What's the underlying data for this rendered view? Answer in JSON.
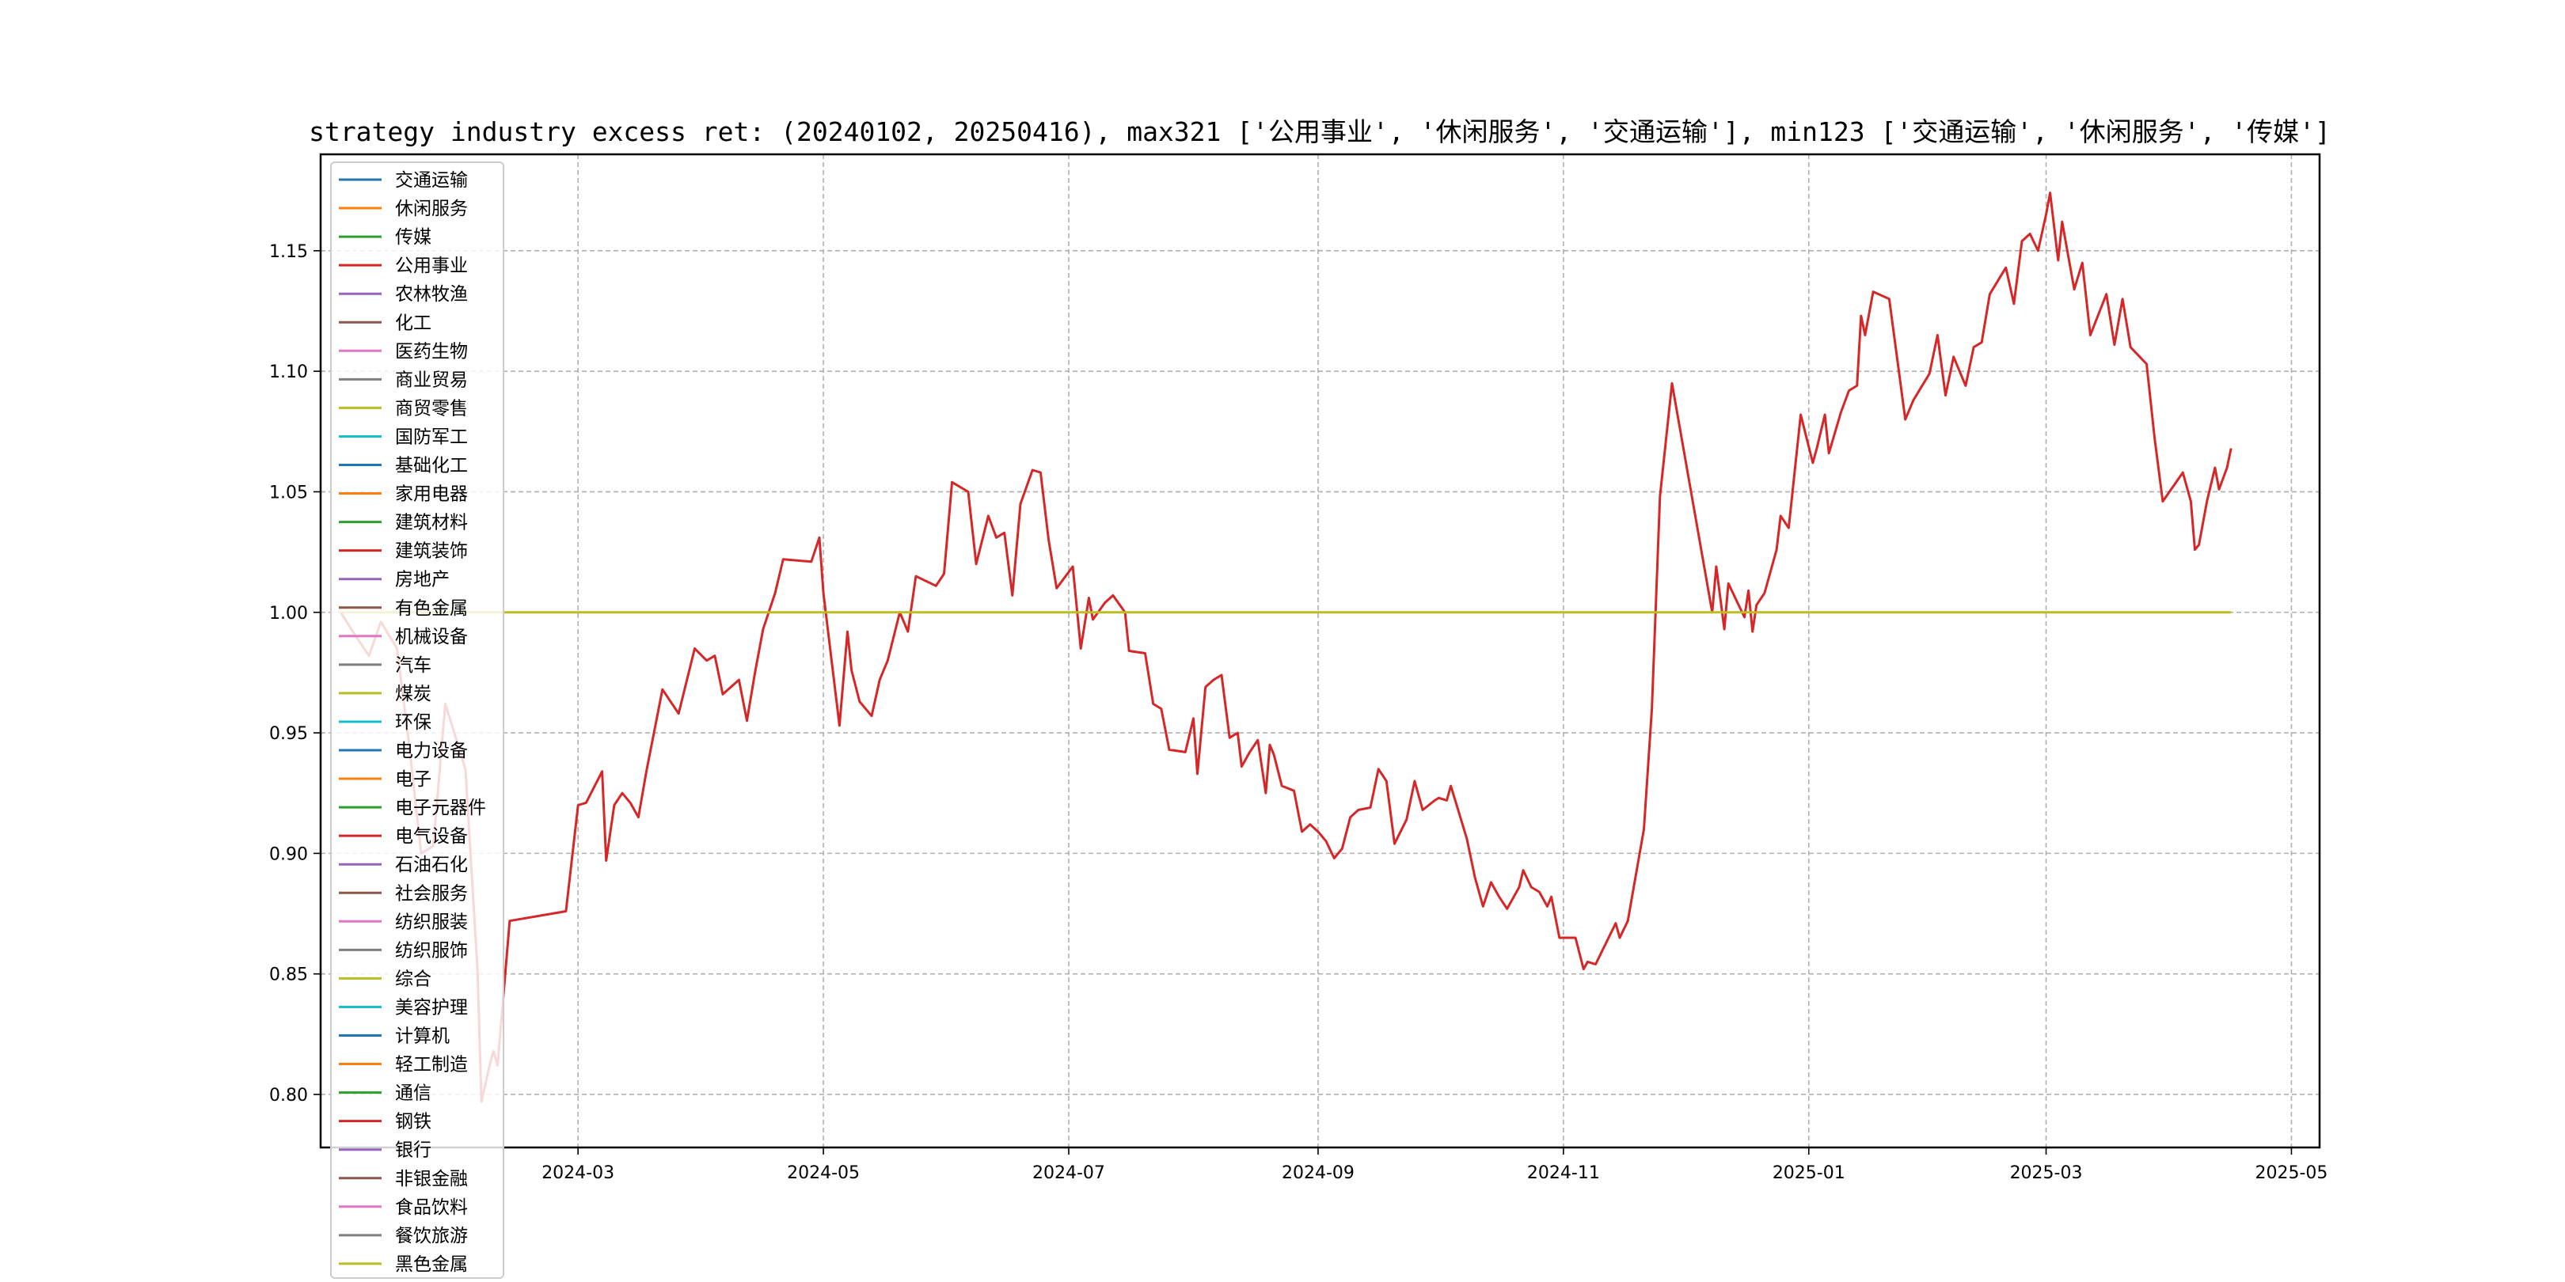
{
  "chart_data": {
    "type": "line",
    "title": "strategy industry excess ret: (20240102, 20250416), max321 ['公用事业', '休闲服务', '交通运输'], min123 ['交通运输', '休闲服务', '传媒']",
    "xlabel": "",
    "ylabel": "",
    "xlim": [
      "2023-12-28",
      "2025-05-08"
    ],
    "ylim": [
      0.778,
      1.19
    ],
    "x_ticks": [
      "2024-03",
      "2024-05",
      "2024-07",
      "2024-09",
      "2024-11",
      "2025-01",
      "2025-03",
      "2025-05"
    ],
    "y_ticks": [
      "0.80",
      "0.85",
      "0.90",
      "0.95",
      "1.00",
      "1.05",
      "1.10",
      "1.15"
    ],
    "grid": true,
    "legend_position": "upper-left",
    "series": [
      {
        "name": "公用事业",
        "color": "#d62728",
        "points": [
          [
            "2024-01-02",
            1.0
          ],
          [
            "2024-01-05",
            0.992
          ],
          [
            "2024-01-09",
            0.982
          ],
          [
            "2024-01-12",
            0.996
          ],
          [
            "2024-01-16",
            0.985
          ],
          [
            "2024-01-19",
            0.945
          ],
          [
            "2024-01-22",
            0.9
          ],
          [
            "2024-01-25",
            0.903
          ],
          [
            "2024-01-28",
            0.962
          ],
          [
            "2024-02-02",
            0.935
          ],
          [
            "2024-02-05",
            0.852
          ],
          [
            "2024-02-06",
            0.797
          ],
          [
            "2024-02-08",
            0.812
          ],
          [
            "2024-02-09",
            0.818
          ],
          [
            "2024-02-10",
            0.812
          ],
          [
            "2024-02-13",
            0.872
          ],
          [
            "2024-02-27",
            0.876
          ],
          [
            "2024-03-01",
            0.92
          ],
          [
            "2024-03-03",
            0.921
          ],
          [
            "2024-03-07",
            0.934
          ],
          [
            "2024-03-08",
            0.897
          ],
          [
            "2024-03-10",
            0.92
          ],
          [
            "2024-03-12",
            0.925
          ],
          [
            "2024-03-14",
            0.921
          ],
          [
            "2024-03-16",
            0.915
          ],
          [
            "2024-03-18",
            0.934
          ],
          [
            "2024-03-22",
            0.968
          ],
          [
            "2024-03-26",
            0.958
          ],
          [
            "2024-03-30",
            0.985
          ],
          [
            "2024-04-02",
            0.98
          ],
          [
            "2024-04-04",
            0.982
          ],
          [
            "2024-04-06",
            0.966
          ],
          [
            "2024-04-10",
            0.972
          ],
          [
            "2024-04-12",
            0.955
          ],
          [
            "2024-04-14",
            0.975
          ],
          [
            "2024-04-16",
            0.993
          ],
          [
            "2024-04-19",
            1.008
          ],
          [
            "2024-04-21",
            1.022
          ],
          [
            "2024-04-28",
            1.021
          ],
          [
            "2024-04-30",
            1.031
          ],
          [
            "2024-05-01",
            1.008
          ],
          [
            "2024-05-05",
            0.953
          ],
          [
            "2024-05-07",
            0.992
          ],
          [
            "2024-05-08",
            0.976
          ],
          [
            "2024-05-10",
            0.963
          ],
          [
            "2024-05-13",
            0.957
          ],
          [
            "2024-05-15",
            0.972
          ],
          [
            "2024-05-17",
            0.98
          ],
          [
            "2024-05-20",
            1.0
          ],
          [
            "2024-05-22",
            0.992
          ],
          [
            "2024-05-24",
            1.015
          ],
          [
            "2024-05-29",
            1.011
          ],
          [
            "2024-05-31",
            1.016
          ],
          [
            "2024-06-02",
            1.054
          ],
          [
            "2024-06-06",
            1.05
          ],
          [
            "2024-06-08",
            1.02
          ],
          [
            "2024-06-11",
            1.04
          ],
          [
            "2024-06-13",
            1.031
          ],
          [
            "2024-06-15",
            1.033
          ],
          [
            "2024-06-17",
            1.007
          ],
          [
            "2024-06-19",
            1.045
          ],
          [
            "2024-06-22",
            1.059
          ],
          [
            "2024-06-24",
            1.058
          ],
          [
            "2024-06-26",
            1.03
          ],
          [
            "2024-06-28",
            1.01
          ],
          [
            "2024-07-02",
            1.019
          ],
          [
            "2024-07-04",
            0.985
          ],
          [
            "2024-07-06",
            1.006
          ],
          [
            "2024-07-07",
            0.997
          ],
          [
            "2024-07-10",
            1.004
          ],
          [
            "2024-07-12",
            1.007
          ],
          [
            "2024-07-15",
            1.0
          ],
          [
            "2024-07-16",
            0.984
          ],
          [
            "2024-07-20",
            0.983
          ],
          [
            "2024-07-22",
            0.962
          ],
          [
            "2024-07-24",
            0.96
          ],
          [
            "2024-07-26",
            0.943
          ],
          [
            "2024-07-30",
            0.942
          ],
          [
            "2024-08-01",
            0.956
          ],
          [
            "2024-08-02",
            0.933
          ],
          [
            "2024-08-04",
            0.969
          ],
          [
            "2024-08-06",
            0.972
          ],
          [
            "2024-08-08",
            0.974
          ],
          [
            "2024-08-10",
            0.948
          ],
          [
            "2024-08-12",
            0.95
          ],
          [
            "2024-08-13",
            0.936
          ],
          [
            "2024-08-15",
            0.942
          ],
          [
            "2024-08-17",
            0.947
          ],
          [
            "2024-08-19",
            0.925
          ],
          [
            "2024-08-20",
            0.945
          ],
          [
            "2024-08-21",
            0.941
          ],
          [
            "2024-08-23",
            0.928
          ],
          [
            "2024-08-26",
            0.926
          ],
          [
            "2024-08-28",
            0.909
          ],
          [
            "2024-08-30",
            0.912
          ],
          [
            "2024-09-01",
            0.909
          ],
          [
            "2024-09-03",
            0.905
          ],
          [
            "2024-09-05",
            0.898
          ],
          [
            "2024-09-07",
            0.902
          ],
          [
            "2024-09-09",
            0.915
          ],
          [
            "2024-09-11",
            0.918
          ],
          [
            "2024-09-14",
            0.919
          ],
          [
            "2024-09-16",
            0.935
          ],
          [
            "2024-09-18",
            0.93
          ],
          [
            "2024-09-20",
            0.904
          ],
          [
            "2024-09-23",
            0.914
          ],
          [
            "2024-09-25",
            0.93
          ],
          [
            "2024-09-27",
            0.918
          ],
          [
            "2024-09-30",
            0.922
          ],
          [
            "2024-10-01",
            0.923
          ],
          [
            "2024-10-03",
            0.922
          ],
          [
            "2024-10-04",
            0.928
          ],
          [
            "2024-10-06",
            0.917
          ],
          [
            "2024-10-08",
            0.906
          ],
          [
            "2024-10-10",
            0.89
          ],
          [
            "2024-10-12",
            0.878
          ],
          [
            "2024-10-14",
            0.888
          ],
          [
            "2024-10-16",
            0.882
          ],
          [
            "2024-10-18",
            0.877
          ],
          [
            "2024-10-21",
            0.886
          ],
          [
            "2024-10-22",
            0.893
          ],
          [
            "2024-10-24",
            0.886
          ],
          [
            "2024-10-26",
            0.884
          ],
          [
            "2024-10-28",
            0.878
          ],
          [
            "2024-10-29",
            0.882
          ],
          [
            "2024-10-31",
            0.865
          ],
          [
            "2024-11-04",
            0.865
          ],
          [
            "2024-11-06",
            0.852
          ],
          [
            "2024-11-07",
            0.855
          ],
          [
            "2024-11-09",
            0.854
          ],
          [
            "2024-11-14",
            0.871
          ],
          [
            "2024-11-15",
            0.865
          ],
          [
            "2024-11-17",
            0.872
          ],
          [
            "2024-11-21",
            0.91
          ],
          [
            "2024-11-23",
            0.96
          ],
          [
            "2024-11-25",
            1.048
          ],
          [
            "2024-11-28",
            1.095
          ],
          [
            "2024-12-08",
            1.0
          ],
          [
            "2024-12-09",
            1.019
          ],
          [
            "2024-12-11",
            0.993
          ],
          [
            "2024-12-12",
            1.012
          ],
          [
            "2024-12-14",
            1.005
          ],
          [
            "2024-12-16",
            0.998
          ],
          [
            "2024-12-17",
            1.009
          ],
          [
            "2024-12-18",
            0.992
          ],
          [
            "2024-12-19",
            1.003
          ],
          [
            "2024-12-21",
            1.008
          ],
          [
            "2024-12-24",
            1.026
          ],
          [
            "2024-12-25",
            1.04
          ],
          [
            "2024-12-27",
            1.035
          ],
          [
            "2024-12-30",
            1.082
          ],
          [
            "2025-01-02",
            1.062
          ],
          [
            "2025-01-03",
            1.068
          ],
          [
            "2025-01-05",
            1.082
          ],
          [
            "2025-01-06",
            1.066
          ],
          [
            "2025-01-09",
            1.083
          ],
          [
            "2025-01-11",
            1.092
          ],
          [
            "2025-01-13",
            1.094
          ],
          [
            "2025-01-14",
            1.123
          ],
          [
            "2025-01-15",
            1.115
          ],
          [
            "2025-01-17",
            1.133
          ],
          [
            "2025-01-21",
            1.13
          ],
          [
            "2025-01-25",
            1.08
          ],
          [
            "2025-01-27",
            1.088
          ],
          [
            "2025-01-31",
            1.099
          ],
          [
            "2025-02-02",
            1.115
          ],
          [
            "2025-02-04",
            1.09
          ],
          [
            "2025-02-06",
            1.106
          ],
          [
            "2025-02-09",
            1.094
          ],
          [
            "2025-02-11",
            1.11
          ],
          [
            "2025-02-13",
            1.112
          ],
          [
            "2025-02-15",
            1.132
          ],
          [
            "2025-02-19",
            1.143
          ],
          [
            "2025-02-21",
            1.128
          ],
          [
            "2025-02-23",
            1.154
          ],
          [
            "2025-02-25",
            1.157
          ],
          [
            "2025-02-27",
            1.15
          ],
          [
            "2025-03-01",
            1.165
          ],
          [
            "2025-03-02",
            1.174
          ],
          [
            "2025-03-04",
            1.146
          ],
          [
            "2025-03-05",
            1.162
          ],
          [
            "2025-03-08",
            1.134
          ],
          [
            "2025-03-10",
            1.145
          ],
          [
            "2025-03-12",
            1.115
          ],
          [
            "2025-03-16",
            1.132
          ],
          [
            "2025-03-18",
            1.111
          ],
          [
            "2025-03-20",
            1.13
          ],
          [
            "2025-03-22",
            1.11
          ],
          [
            "2025-03-26",
            1.103
          ],
          [
            "2025-03-28",
            1.072
          ],
          [
            "2025-03-30",
            1.046
          ],
          [
            "2025-04-04",
            1.058
          ],
          [
            "2025-04-06",
            1.046
          ],
          [
            "2025-04-07",
            1.026
          ],
          [
            "2025-04-08",
            1.028
          ],
          [
            "2025-04-10",
            1.046
          ],
          [
            "2025-04-12",
            1.06
          ],
          [
            "2025-04-13",
            1.051
          ],
          [
            "2025-04-15",
            1.06
          ],
          [
            "2025-04-16",
            1.068
          ]
        ]
      },
      {
        "name": "煤炭",
        "color": "#bcbd22",
        "points": [
          [
            "2024-01-02",
            1.0
          ],
          [
            "2025-04-16",
            1.0
          ]
        ]
      }
    ],
    "legend": [
      {
        "name": "交通运输",
        "color": "#1f77b4"
      },
      {
        "name": "休闲服务",
        "color": "#ff7f0e"
      },
      {
        "name": "传媒",
        "color": "#2ca02c"
      },
      {
        "name": "公用事业",
        "color": "#d62728"
      },
      {
        "name": "农林牧渔",
        "color": "#9467bd"
      },
      {
        "name": "化工",
        "color": "#8c564b"
      },
      {
        "name": "医药生物",
        "color": "#e377c2"
      },
      {
        "name": "商业贸易",
        "color": "#7f7f7f"
      },
      {
        "name": "商贸零售",
        "color": "#bcbd22"
      },
      {
        "name": "国防军工",
        "color": "#17becf"
      },
      {
        "name": "基础化工",
        "color": "#1f77b4"
      },
      {
        "name": "家用电器",
        "color": "#ff7f0e"
      },
      {
        "name": "建筑材料",
        "color": "#2ca02c"
      },
      {
        "name": "建筑装饰",
        "color": "#d62728"
      },
      {
        "name": "房地产",
        "color": "#9467bd"
      },
      {
        "name": "有色金属",
        "color": "#8c564b"
      },
      {
        "name": "机械设备",
        "color": "#e377c2"
      },
      {
        "name": "汽车",
        "color": "#7f7f7f"
      },
      {
        "name": "煤炭",
        "color": "#bcbd22"
      },
      {
        "name": "环保",
        "color": "#17becf"
      },
      {
        "name": "电力设备",
        "color": "#1f77b4"
      },
      {
        "name": "电子",
        "color": "#ff7f0e"
      },
      {
        "name": "电子元器件",
        "color": "#2ca02c"
      },
      {
        "name": "电气设备",
        "color": "#d62728"
      },
      {
        "name": "石油石化",
        "color": "#9467bd"
      },
      {
        "name": "社会服务",
        "color": "#8c564b"
      },
      {
        "name": "纺织服装",
        "color": "#e377c2"
      },
      {
        "name": "纺织服饰",
        "color": "#7f7f7f"
      },
      {
        "name": "综合",
        "color": "#bcbd22"
      },
      {
        "name": "美容护理",
        "color": "#17becf"
      },
      {
        "name": "计算机",
        "color": "#1f77b4"
      },
      {
        "name": "轻工制造",
        "color": "#ff7f0e"
      },
      {
        "name": "通信",
        "color": "#2ca02c"
      },
      {
        "name": "钢铁",
        "color": "#d62728"
      },
      {
        "name": "银行",
        "color": "#9467bd"
      },
      {
        "name": "非银金融",
        "color": "#8c564b"
      },
      {
        "name": "食品饮料",
        "color": "#e377c2"
      },
      {
        "name": "餐饮旅游",
        "color": "#7f7f7f"
      },
      {
        "name": "黑色金属",
        "color": "#bcbd22"
      }
    ]
  }
}
